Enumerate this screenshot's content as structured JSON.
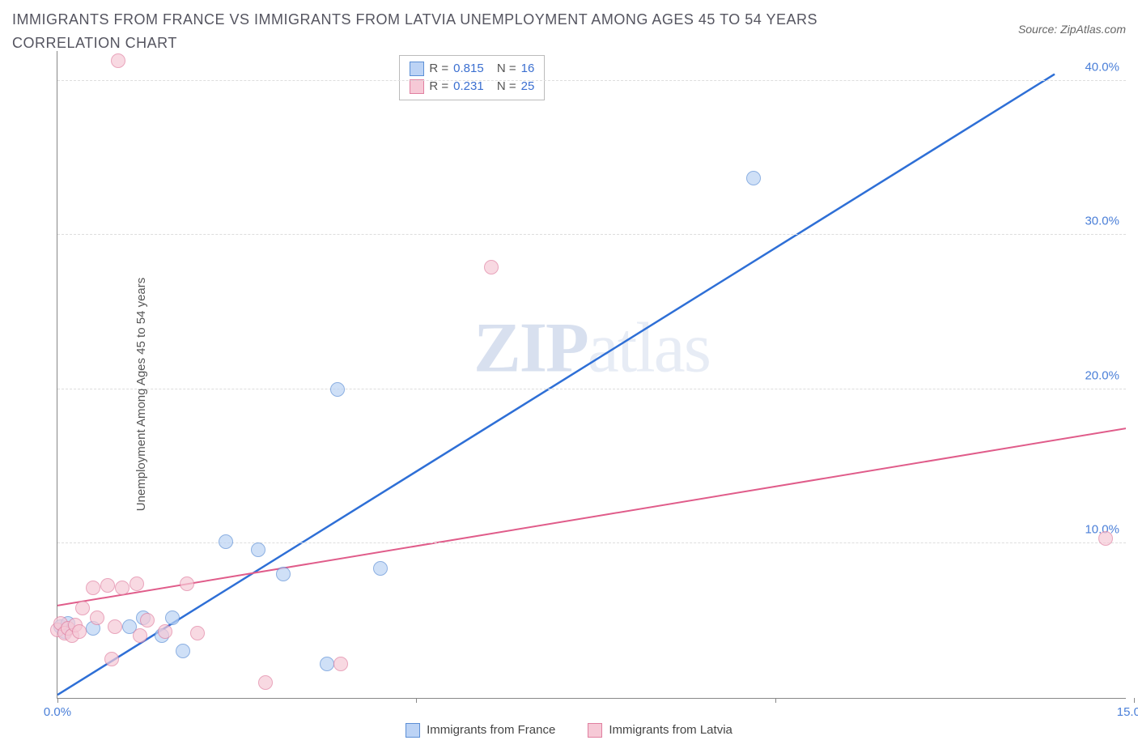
{
  "title": "IMMIGRANTS FROM FRANCE VS IMMIGRANTS FROM LATVIA UNEMPLOYMENT AMONG AGES 45 TO 54 YEARS CORRELATION CHART",
  "source": "Source: ZipAtlas.com",
  "yaxis_label": "Unemployment Among Ages 45 to 54 years",
  "watermark_bold": "ZIP",
  "watermark_light": "atlas",
  "chart": {
    "type": "scatter",
    "xlim": [
      0,
      15
    ],
    "ylim": [
      0,
      42
    ],
    "xticks": [
      0,
      5,
      10,
      15
    ],
    "xtick_labels": [
      "0.0%",
      "",
      "",
      "15.0%"
    ],
    "y_gridlines": [
      10,
      20,
      30,
      40
    ],
    "ytick_labels": [
      "10.0%",
      "20.0%",
      "30.0%",
      "40.0%"
    ],
    "background_color": "#ffffff",
    "grid_color": "#dddddd",
    "axis_color": "#888888",
    "tick_label_color": "#4a7fd8",
    "point_radius": 9,
    "series": [
      {
        "name": "Immigrants from France",
        "fill": "#bcd3f5",
        "stroke": "#5c8fd6",
        "trend_color": "#2e6fd6",
        "trend_width": 2.5,
        "R": "0.815",
        "N": "16",
        "trend_p1": {
          "x": 0,
          "y": 0.2
        },
        "trend_p2": {
          "x": 14.0,
          "y": 40.5
        },
        "points": [
          {
            "x": 0.05,
            "y": 4.6
          },
          {
            "x": 0.1,
            "y": 4.3
          },
          {
            "x": 0.15,
            "y": 4.8
          },
          {
            "x": 0.5,
            "y": 4.5
          },
          {
            "x": 1.0,
            "y": 4.6
          },
          {
            "x": 1.2,
            "y": 5.2
          },
          {
            "x": 1.45,
            "y": 4.0
          },
          {
            "x": 1.6,
            "y": 5.2
          },
          {
            "x": 1.75,
            "y": 3.0
          },
          {
            "x": 2.35,
            "y": 10.1
          },
          {
            "x": 2.8,
            "y": 9.6
          },
          {
            "x": 3.15,
            "y": 8.0
          },
          {
            "x": 3.75,
            "y": 2.2
          },
          {
            "x": 3.9,
            "y": 20.0
          },
          {
            "x": 4.5,
            "y": 8.4
          },
          {
            "x": 9.7,
            "y": 33.7
          }
        ]
      },
      {
        "name": "Immigrants from Latvia",
        "fill": "#f6c9d6",
        "stroke": "#e07fa0",
        "trend_color": "#e05c8a",
        "trend_width": 2,
        "R": "0.231",
        "N": "25",
        "trend_p1": {
          "x": 0,
          "y": 6.0
        },
        "trend_p2": {
          "x": 15,
          "y": 17.5
        },
        "points": [
          {
            "x": 0.0,
            "y": 4.4
          },
          {
            "x": 0.05,
            "y": 4.8
          },
          {
            "x": 0.1,
            "y": 4.2
          },
          {
            "x": 0.15,
            "y": 4.5
          },
          {
            "x": 0.2,
            "y": 4.0
          },
          {
            "x": 0.25,
            "y": 4.7
          },
          {
            "x": 0.3,
            "y": 4.3
          },
          {
            "x": 0.35,
            "y": 5.8
          },
          {
            "x": 0.5,
            "y": 7.1
          },
          {
            "x": 0.55,
            "y": 5.2
          },
          {
            "x": 0.7,
            "y": 7.3
          },
          {
            "x": 0.75,
            "y": 2.5
          },
          {
            "x": 0.8,
            "y": 4.6
          },
          {
            "x": 0.85,
            "y": 41.3
          },
          {
            "x": 0.9,
            "y": 7.1
          },
          {
            "x": 1.1,
            "y": 7.4
          },
          {
            "x": 1.15,
            "y": 4.0
          },
          {
            "x": 1.25,
            "y": 5.0
          },
          {
            "x": 1.5,
            "y": 4.3
          },
          {
            "x": 1.8,
            "y": 7.4
          },
          {
            "x": 1.95,
            "y": 4.2
          },
          {
            "x": 2.9,
            "y": 1.0
          },
          {
            "x": 3.95,
            "y": 2.2
          },
          {
            "x": 6.05,
            "y": 27.9
          },
          {
            "x": 14.6,
            "y": 10.3
          }
        ]
      }
    ]
  },
  "legend_top": {
    "r_label": "R =",
    "n_label": "N ="
  }
}
